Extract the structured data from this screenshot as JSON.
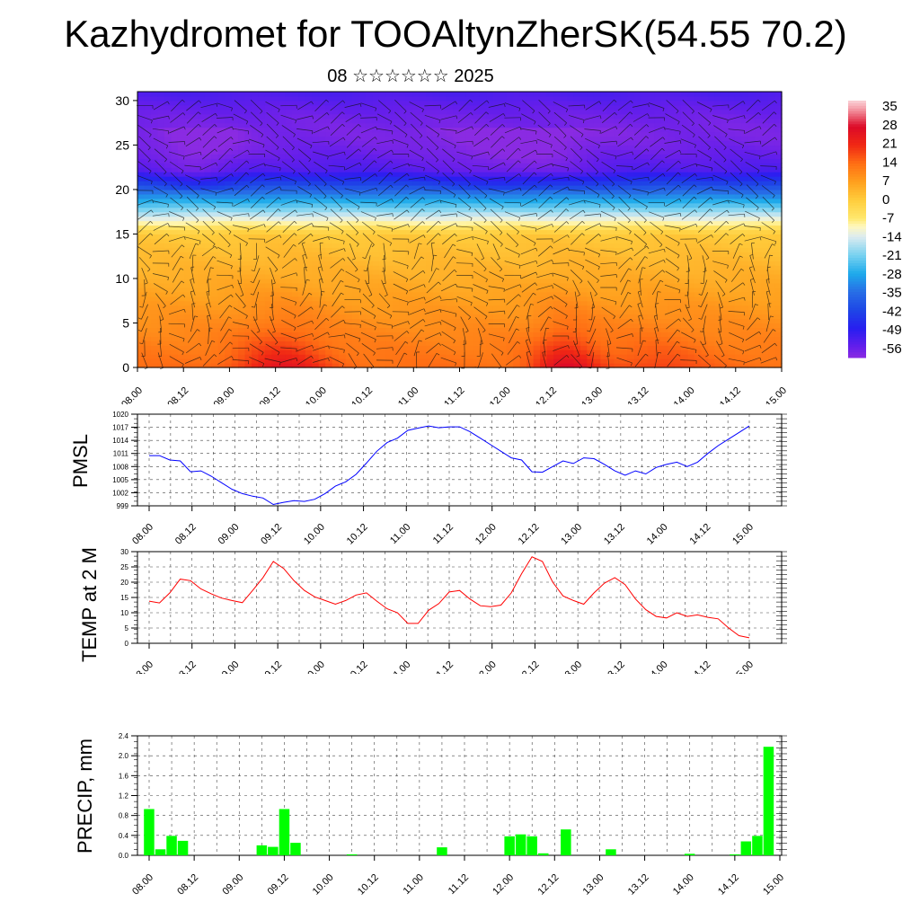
{
  "header": {
    "title": "Kazhydromet for TOOAltynZherSK(54.55 70.2)",
    "subtitle": "08 ☆☆☆☆☆☆ 2025"
  },
  "colors": {
    "pmsl_line": "#0000ff",
    "temp_line": "#ff0000",
    "precip_bar": "#00ff00",
    "background": "#ffffff"
  },
  "chart_data": [
    {
      "type": "heatmap",
      "description_key": "cross-section",
      "x_tick_labels": [
        "08.00",
        "08.12",
        "09.00",
        "09.12",
        "10.00",
        "10.12",
        "11.00",
        "11.12",
        "12.00",
        "12.12",
        "13.00",
        "13.12",
        "14.00",
        "14.12",
        "15.00"
      ],
      "y_ticks": [
        0,
        5,
        10,
        15,
        20,
        25,
        30
      ],
      "ylim": [
        0,
        31
      ],
      "colorbar_labels": [
        "35",
        "28",
        "21",
        "14",
        "7",
        "0",
        "-7",
        "-14",
        "-21",
        "-28",
        "-35",
        "-42",
        "-49",
        "-56"
      ],
      "colorbar_range": [
        -60,
        38
      ]
    },
    {
      "type": "line",
      "ylabel": "PMSL",
      "y_ticks": [
        999,
        1002,
        1005,
        1008,
        1011,
        1014,
        1017,
        1020
      ],
      "ylim": [
        999,
        1020
      ],
      "x_tick_labels": [
        "08.00",
        "08.12",
        "09.00",
        "09.12",
        "10.00",
        "10.12",
        "11.00",
        "11.12",
        "12.00",
        "12.12",
        "13.00",
        "13.12",
        "14.00",
        "14.12",
        "15.00"
      ],
      "grid": true,
      "series": [
        {
          "values": [
            1010.5,
            1010.5,
            1009.5,
            1009.3,
            1006.8,
            1007.0,
            1005.8,
            1004.3,
            1002.8,
            1001.8,
            1001.2,
            1000.8,
            999.3,
            999.8,
            1000.2,
            1000.0,
            1000.5,
            1001.8,
            1003.5,
            1004.5,
            1006.2,
            1008.8,
            1011.5,
            1013.5,
            1014.5,
            1016.3,
            1016.8,
            1017.3,
            1016.9,
            1017.1,
            1017.1,
            1016.0,
            1014.5,
            1013.0,
            1011.5,
            1010.0,
            1009.5,
            1006.8,
            1006.7,
            1008.0,
            1009.3,
            1008.7,
            1010.0,
            1009.8,
            1008.5,
            1007.0,
            1006.0,
            1007.0,
            1006.3,
            1007.8,
            1008.5,
            1009.0,
            1008.0,
            1009.0,
            1011.0,
            1012.8,
            1014.3,
            1015.8,
            1017.3
          ]
        }
      ]
    },
    {
      "type": "line",
      "ylabel": "TEMP at 2 M",
      "y_ticks": [
        0,
        5,
        10,
        15,
        20,
        25,
        30
      ],
      "ylim": [
        0,
        30
      ],
      "x_tick_labels": [
        "08.00",
        "08.12",
        "09.00",
        "09.12",
        "10.00",
        "10.12",
        "11.00",
        "11.12",
        "12.00",
        "12.12",
        "13.00",
        "13.12",
        "14.00",
        "14.12",
        "15.00"
      ],
      "grid": true,
      "series": [
        {
          "values": [
            13.8,
            13.2,
            16.5,
            21.0,
            20.5,
            17.8,
            16.2,
            14.8,
            14.0,
            13.3,
            17.3,
            21.5,
            26.8,
            24.5,
            20.5,
            17.3,
            15.2,
            14.0,
            12.8,
            14.0,
            15.8,
            16.5,
            13.8,
            11.3,
            10.0,
            6.5,
            6.5,
            10.8,
            13.0,
            16.8,
            17.3,
            14.5,
            12.3,
            12.0,
            12.5,
            16.5,
            22.8,
            28.3,
            26.8,
            20.0,
            15.5,
            14.0,
            12.8,
            16.5,
            19.7,
            21.5,
            19.2,
            14.5,
            11.0,
            8.8,
            8.3,
            10.0,
            8.8,
            9.3,
            8.5,
            8.0,
            5.0,
            2.5,
            1.8
          ]
        }
      ]
    },
    {
      "type": "bar",
      "ylabel": "PRECIP, mm",
      "y_ticks": [
        "0.0",
        "0.4",
        "0.8",
        "1.2",
        "1.6",
        "2.0",
        "2.4"
      ],
      "ylim": [
        0,
        2.4
      ],
      "x_tick_labels": [
        "08.00",
        "08.12",
        "09.00",
        "09.12",
        "10.00",
        "10.12",
        "11.00",
        "11.12",
        "12.00",
        "12.12",
        "13.00",
        "13.12",
        "14.00",
        "14.12",
        "15.00"
      ],
      "grid": true,
      "values": [
        0.93,
        0.12,
        0.39,
        0.29,
        0,
        0,
        0,
        0,
        0,
        0,
        0.2,
        0.17,
        0.93,
        0.25,
        0,
        0,
        0,
        0,
        0.02,
        0,
        0,
        0,
        0,
        0,
        0,
        0,
        0.16,
        0,
        0,
        0,
        0,
        0,
        0.38,
        0.42,
        0.38,
        0.04,
        0,
        0.52,
        0,
        0,
        0,
        0.12,
        0,
        0,
        0,
        0,
        0,
        0,
        0.03,
        0,
        0,
        0,
        0.02,
        0.28,
        0.39,
        2.18,
        0,
        0,
        0
      ]
    }
  ]
}
